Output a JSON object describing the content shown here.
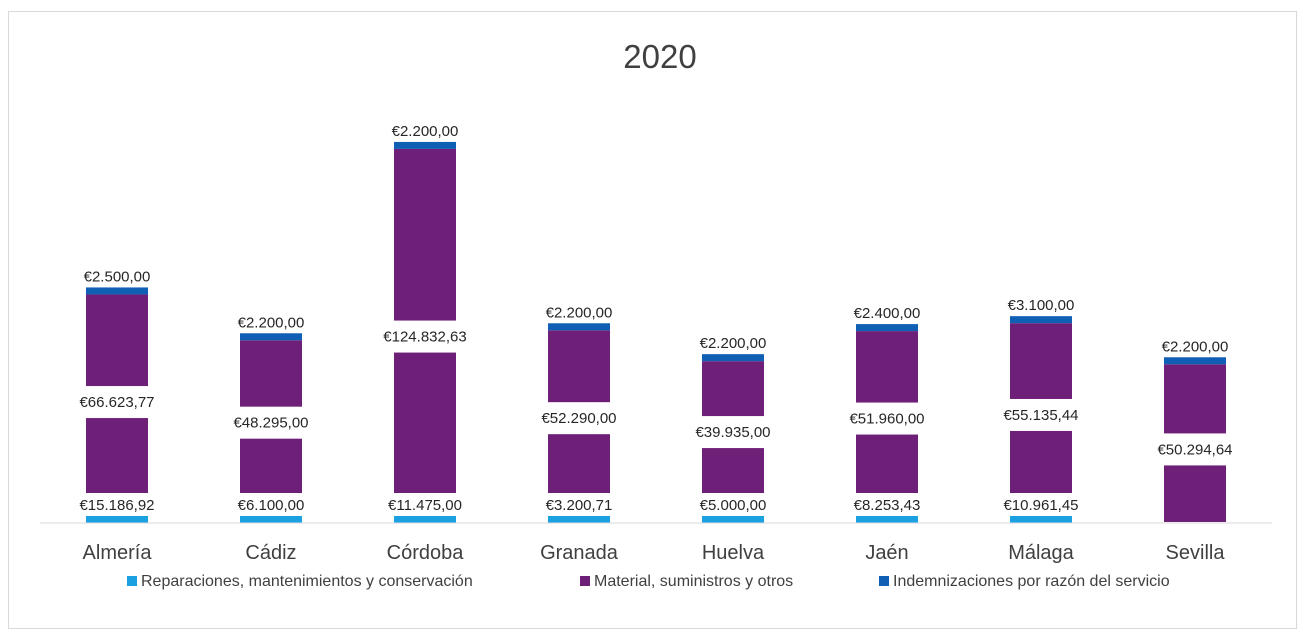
{
  "chart_data": {
    "type": "bar",
    "stacked": true,
    "title": "2020",
    "categories": [
      "Almería",
      "Cádiz",
      "Córdoba",
      "Granada",
      "Huelva",
      "Jaén",
      "Málaga",
      "Sevilla"
    ],
    "series": [
      {
        "name": "Reparaciones, mantenimientos y conservación",
        "color": "#1ba1e2",
        "values": [
          15186.92,
          6100.0,
          11475.0,
          3200.71,
          5000.0,
          8253.43,
          10961.45,
          0
        ],
        "labels": [
          "€15.186,92",
          "€6.100,00",
          "€11.475,00",
          "€3.200,71",
          "€5.000,00",
          "€8.253,43",
          "€10.961,45",
          ""
        ]
      },
      {
        "name": "Material, suministros y otros",
        "color": "#6e1f78",
        "values": [
          66623.77,
          48295.0,
          124832.63,
          52290.0,
          39935.0,
          51960.0,
          55135.44,
          50294.64
        ],
        "labels": [
          "€66.623,77",
          "€48.295,00",
          "€124.832,63",
          "€52.290,00",
          "€39.935,00",
          "€51.960,00",
          "€55.135,44",
          "€50.294,64"
        ]
      },
      {
        "name": "Indemnizaciones por razón del servicio",
        "color": "#0f5fb5",
        "values": [
          2500.0,
          2200.0,
          2200.0,
          2200.0,
          2200.0,
          2400.0,
          3100.0,
          2200.0
        ],
        "labels": [
          "€2.500,00",
          "€2.200,00",
          "€2.200,00",
          "€2.200,00",
          "€2.200,00",
          "€2.400,00",
          "€3.100,00",
          "€2.200,00"
        ]
      }
    ],
    "legend_position": "bottom",
    "grid": false
  }
}
